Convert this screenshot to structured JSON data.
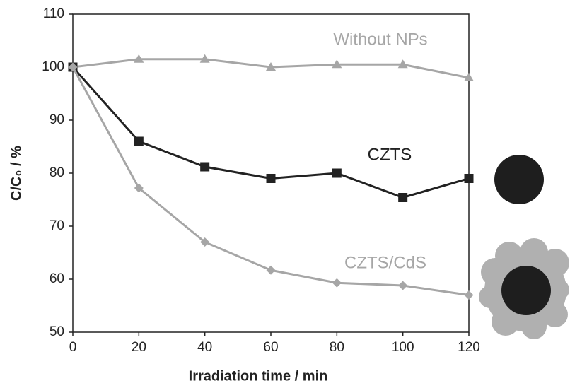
{
  "chart_data": {
    "type": "line",
    "x_label": "Irradiation time / min",
    "y_label": "C/C₀ / %",
    "x": [
      0,
      20,
      40,
      60,
      80,
      100,
      120
    ],
    "series": [
      {
        "name": "Without NPs",
        "color": "#a6a6a6",
        "marker": "triangle",
        "values": [
          100,
          101.5,
          101.5,
          100,
          100.5,
          100.5,
          98
        ]
      },
      {
        "name": "CZTS",
        "color": "#222222",
        "marker": "square",
        "values": [
          100,
          86,
          81.2,
          79,
          80,
          75.4,
          79
        ]
      },
      {
        "name": "CZTS/CdS",
        "color": "#a6a6a6",
        "marker": "diamond",
        "values": [
          100,
          77.2,
          67,
          61.7,
          59.3,
          58.8,
          57
        ]
      }
    ],
    "xlim": [
      0,
      120
    ],
    "xticks": [
      0,
      20,
      40,
      60,
      80,
      100,
      120
    ],
    "ylim": [
      50,
      110
    ],
    "yticks": [
      50,
      60,
      70,
      80,
      90,
      100,
      110
    ]
  }
}
